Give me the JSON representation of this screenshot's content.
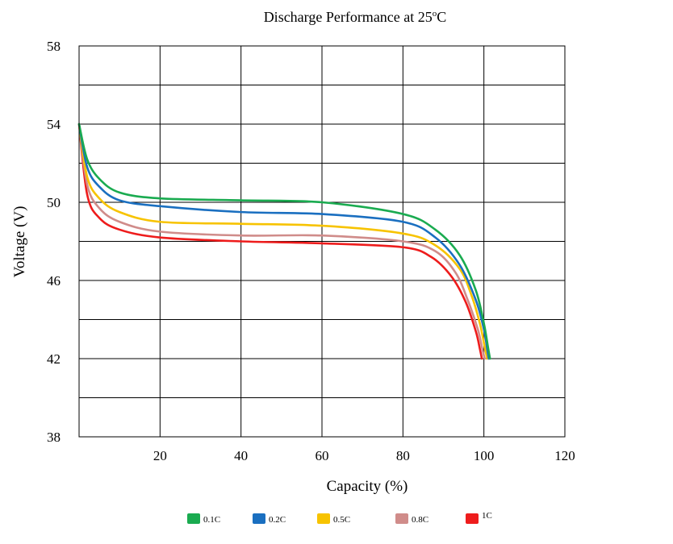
{
  "chart_data": {
    "type": "line",
    "title_main": "Discharge Performance at 25",
    "title_sup": "o",
    "title_tail": "C",
    "xlabel": "Capacity (%)",
    "ylabel": "Voltage (V)",
    "xlim": [
      0,
      120
    ],
    "ylim": [
      38,
      58
    ],
    "x_ticks": [
      20,
      40,
      60,
      80,
      100,
      120
    ],
    "y_ticks": [
      38,
      42,
      46,
      50,
      54,
      58
    ],
    "x_tick_labels": [
      "20",
      "40",
      "60",
      "80",
      "100",
      "120"
    ],
    "y_tick_labels": [
      "38",
      "42",
      "46",
      "50",
      "54",
      "58"
    ],
    "grid": true,
    "legend_position": "bottom",
    "series": [
      {
        "name": "0.1C",
        "color": "#1aab50",
        "x": [
          0,
          2,
          5,
          10,
          20,
          40,
          60,
          80,
          88,
          94,
          98,
          100,
          101,
          101.5
        ],
        "y": [
          54,
          52.2,
          51.2,
          50.5,
          50.2,
          50.1,
          50.0,
          49.4,
          48.6,
          47.3,
          45.5,
          43.8,
          42.6,
          42.0
        ]
      },
      {
        "name": "0.2C",
        "color": "#1a6fc0",
        "x": [
          0,
          2,
          5,
          10,
          20,
          40,
          60,
          80,
          88,
          94,
          98,
          100,
          100.8,
          101.2
        ],
        "y": [
          54,
          51.8,
          50.8,
          50.1,
          49.8,
          49.5,
          49.4,
          49.0,
          48.2,
          46.8,
          45.0,
          43.5,
          42.5,
          42.0
        ]
      },
      {
        "name": "0.5C",
        "color": "#f7c300",
        "x": [
          0,
          2,
          5,
          10,
          20,
          40,
          60,
          80,
          88,
          94,
          97,
          99,
          100.2,
          100.8
        ],
        "y": [
          54,
          51.3,
          50.2,
          49.5,
          49.0,
          48.9,
          48.8,
          48.4,
          47.8,
          46.6,
          45.2,
          43.8,
          42.6,
          42.0
        ]
      },
      {
        "name": "0.8C",
        "color": "#d08c8a",
        "x": [
          0,
          2,
          5,
          10,
          20,
          40,
          60,
          80,
          88,
          93,
          96,
          98.5,
          99.6,
          100.2
        ],
        "y": [
          54,
          50.9,
          49.7,
          49.0,
          48.5,
          48.3,
          48.3,
          48.0,
          47.5,
          46.4,
          45.0,
          43.5,
          42.5,
          42.0
        ]
      },
      {
        "name": "1C",
        "color": "#ee1c1c",
        "x": [
          0,
          2,
          5,
          10,
          20,
          40,
          60,
          80,
          87,
          92,
          95.5,
          98,
          99,
          99.5
        ],
        "y": [
          54,
          50.4,
          49.2,
          48.6,
          48.2,
          48.0,
          47.9,
          47.7,
          47.2,
          46.2,
          44.9,
          43.4,
          42.5,
          42.0
        ]
      }
    ]
  }
}
